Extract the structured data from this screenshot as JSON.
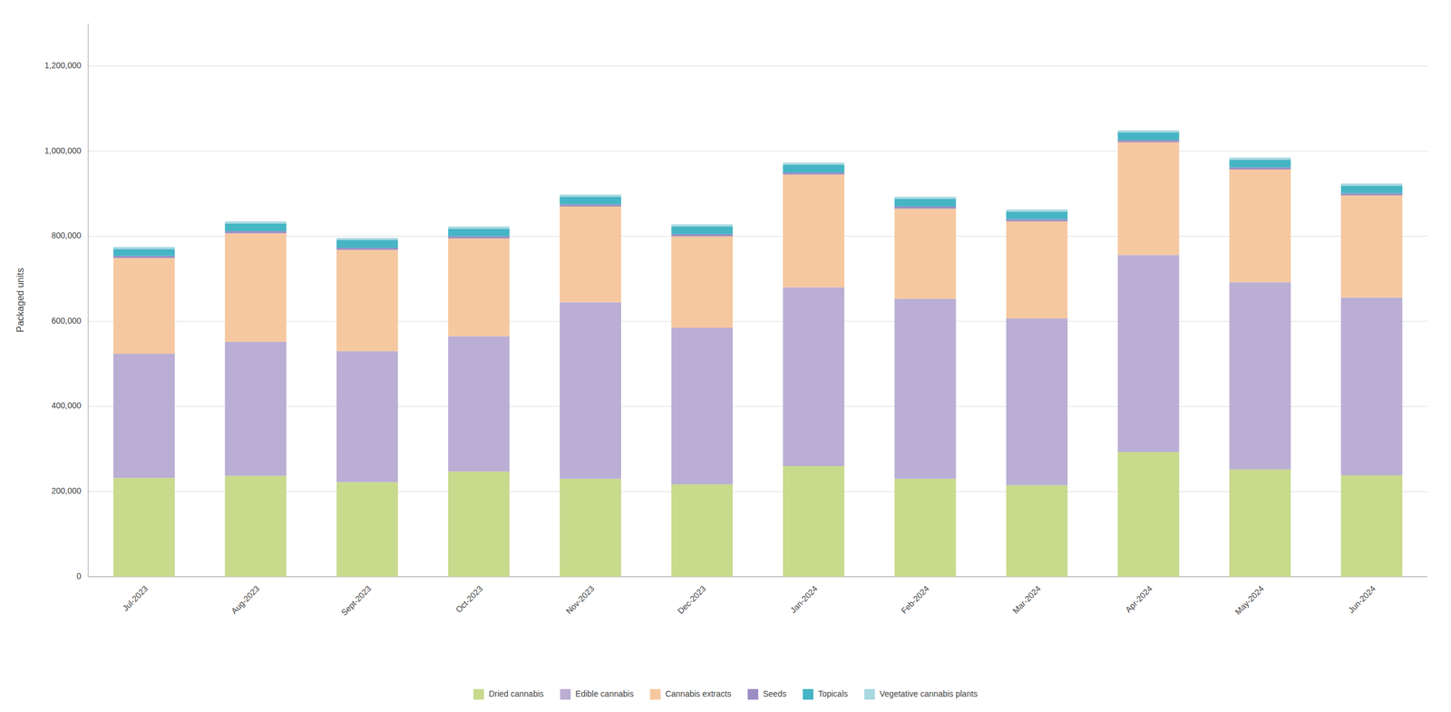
{
  "chart_data": {
    "type": "bar",
    "stacked": true,
    "categories": [
      "Jul-2023",
      "Aug-2023",
      "Sept-2023",
      "Oct-2023",
      "Nov-2023",
      "Dec-2023",
      "Jan-2024",
      "Feb-2024",
      "Mar-2024",
      "Apr-2024",
      "May-2024",
      "Jun-2024"
    ],
    "series": [
      {
        "name": "Dried cannabis",
        "color": "#c8da8c",
        "values": [
          232000,
          237000,
          222000,
          247000,
          230000,
          217000,
          260000,
          230000,
          215000,
          293000,
          252000,
          238000
        ]
      },
      {
        "name": "Edible cannabis",
        "color": "#baaed4",
        "values": [
          292000,
          315000,
          308000,
          318000,
          415000,
          368000,
          420000,
          423000,
          392000,
          463000,
          440000,
          418000
        ]
      },
      {
        "name": "Cannabis extracts",
        "color": "#f5c8a0",
        "values": [
          225000,
          255000,
          238000,
          230000,
          225000,
          215000,
          265000,
          212000,
          228000,
          265000,
          265000,
          240000
        ]
      },
      {
        "name": "Seeds",
        "color": "#9b8dc4",
        "values": [
          5000,
          5000,
          5000,
          5000,
          5000,
          5000,
          5000,
          5000,
          5000,
          5000,
          5000,
          5000
        ]
      },
      {
        "name": "Topicals",
        "color": "#45b5c5",
        "values": [
          16000,
          18000,
          18000,
          18000,
          18000,
          18000,
          18000,
          18000,
          18000,
          18000,
          18000,
          18000
        ]
      },
      {
        "name": "Vegetative cannabis plants",
        "color": "#a8d8e0",
        "values": [
          5000,
          5000,
          5000,
          5000,
          5000,
          5000,
          5000,
          5000,
          5000,
          5000,
          5000,
          5000
        ]
      }
    ],
    "y_label": "Packaged units",
    "ylim": [
      0,
      1300000
    ],
    "yticks": [
      0,
      {
        "value": 200000,
        "label": "200,000"
      },
      {
        "value": 400000,
        "label": "400,000"
      },
      {
        "value": 600000,
        "label": "600,000"
      },
      {
        "value": 800000,
        "label": "800,000"
      },
      {
        "value": 1000000,
        "label": "1,000,000"
      },
      {
        "value": 1200000,
        "label": "1,200,000"
      }
    ],
    "grid": true,
    "legend": "bottom"
  }
}
